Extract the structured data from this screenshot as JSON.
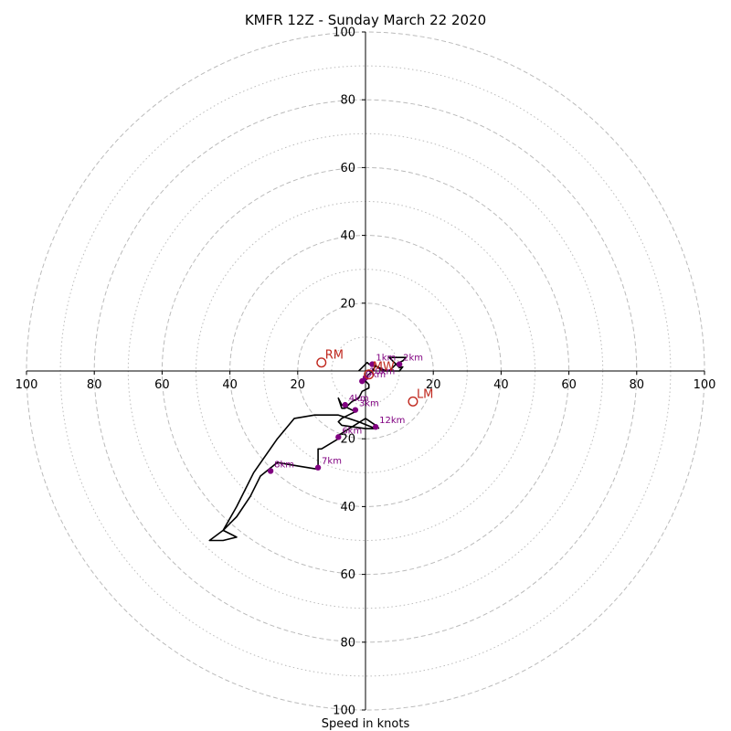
{
  "chart_data": {
    "type": "hodograph",
    "title": "KMFR 12Z - Sunday March 22 2020",
    "xlabel": "Speed in knots",
    "range": [
      -100,
      100
    ],
    "tick_labels": {
      "x": [
        "100",
        "80",
        "60",
        "40",
        "20",
        "20",
        "40",
        "60",
        "80",
        "100"
      ],
      "y": [
        "100",
        "80",
        "60",
        "40",
        "20",
        "20",
        "40",
        "60",
        "80",
        "100"
      ]
    },
    "tick_values": [
      -100,
      -80,
      -60,
      -40,
      -20,
      20,
      40,
      60,
      80,
      100
    ],
    "rings_dashed": [
      20,
      40,
      60,
      80,
      100
    ],
    "rings_dotted": [
      10,
      30,
      50,
      70,
      90
    ],
    "colors": {
      "trace": "#000000",
      "height_markers": "#800080",
      "motion_markers": "#c0281e",
      "grid": "#bbbbbb"
    },
    "trace": [
      [
        -2,
        0
      ],
      [
        -1,
        1
      ],
      [
        0,
        2
      ],
      [
        0.5,
        2.5
      ],
      [
        1,
        2
      ],
      [
        2,
        2
      ],
      [
        3,
        1.5
      ],
      [
        4,
        1
      ],
      [
        5,
        0.5
      ],
      [
        6,
        0
      ],
      [
        7,
        0
      ],
      [
        8,
        1
      ],
      [
        9,
        2
      ],
      [
        10,
        2.5
      ],
      [
        11,
        3
      ],
      [
        12,
        4
      ],
      [
        7,
        4
      ],
      [
        8,
        3
      ],
      [
        9,
        2
      ],
      [
        10,
        1
      ],
      [
        11,
        1.2
      ],
      [
        10,
        0
      ],
      [
        5,
        0
      ],
      [
        3,
        1.5
      ],
      [
        2,
        0
      ],
      [
        1,
        -1
      ],
      [
        0,
        -2
      ],
      [
        0,
        -3
      ],
      [
        1,
        -4
      ],
      [
        1,
        -5
      ],
      [
        -1,
        -6
      ],
      [
        -2,
        -8
      ],
      [
        -4,
        -9
      ],
      [
        -5,
        -10
      ],
      [
        -6,
        -11
      ],
      [
        -7,
        -11
      ],
      [
        -8,
        -8
      ],
      [
        -7,
        -10
      ],
      [
        -5,
        -11
      ],
      [
        -3,
        -12
      ],
      [
        -5,
        -13
      ],
      [
        -7,
        -14
      ],
      [
        -8,
        -15
      ],
      [
        -7,
        -16
      ],
      [
        0,
        -17
      ],
      [
        3,
        -17
      ],
      [
        -2,
        -15
      ],
      [
        -8,
        -13
      ],
      [
        -15,
        -13
      ],
      [
        -21,
        -14
      ],
      [
        -26,
        -20
      ],
      [
        -33,
        -30
      ],
      [
        -38,
        -40
      ],
      [
        -42,
        -47
      ],
      [
        -46,
        -50
      ],
      [
        -42,
        -50
      ],
      [
        -38,
        -49
      ],
      [
        -42,
        -47
      ],
      [
        -38,
        -43
      ],
      [
        -34,
        -37
      ],
      [
        -31,
        -31
      ],
      [
        -26,
        -27
      ],
      [
        -20,
        -28
      ],
      [
        -14,
        -29
      ],
      [
        -14,
        -27
      ],
      [
        -14,
        -23
      ],
      [
        -13,
        -23
      ],
      [
        -8,
        -20
      ],
      [
        -8,
        -19
      ],
      [
        0,
        -14
      ],
      [
        3,
        -16
      ],
      [
        4,
        -17
      ]
    ],
    "height_markers": [
      {
        "label": "1km",
        "u": 2,
        "v": 2
      },
      {
        "label": "2km",
        "u": 10,
        "v": 2
      },
      {
        "label": "3km",
        "u": -3,
        "v": -11.5
      },
      {
        "label": "4km",
        "u": -6,
        "v": -10
      },
      {
        "label": "6km",
        "u": -8,
        "v": -19.5
      },
      {
        "label": "7km",
        "u": -14,
        "v": -28.5
      },
      {
        "label": "8km",
        "u": -28,
        "v": -29.5
      },
      {
        "label": "9km",
        "u": -1,
        "v": -3
      },
      {
        "label": "10km",
        "u": 0,
        "v": -2
      },
      {
        "label": "12km",
        "u": 3,
        "v": -16.5
      }
    ],
    "motion_markers": [
      {
        "label": "RM",
        "u": -13,
        "v": 2.5
      },
      {
        "label": "LM",
        "u": 14,
        "v": -9
      },
      {
        "label": "MW",
        "u": 1,
        "v": -1
      }
    ]
  }
}
